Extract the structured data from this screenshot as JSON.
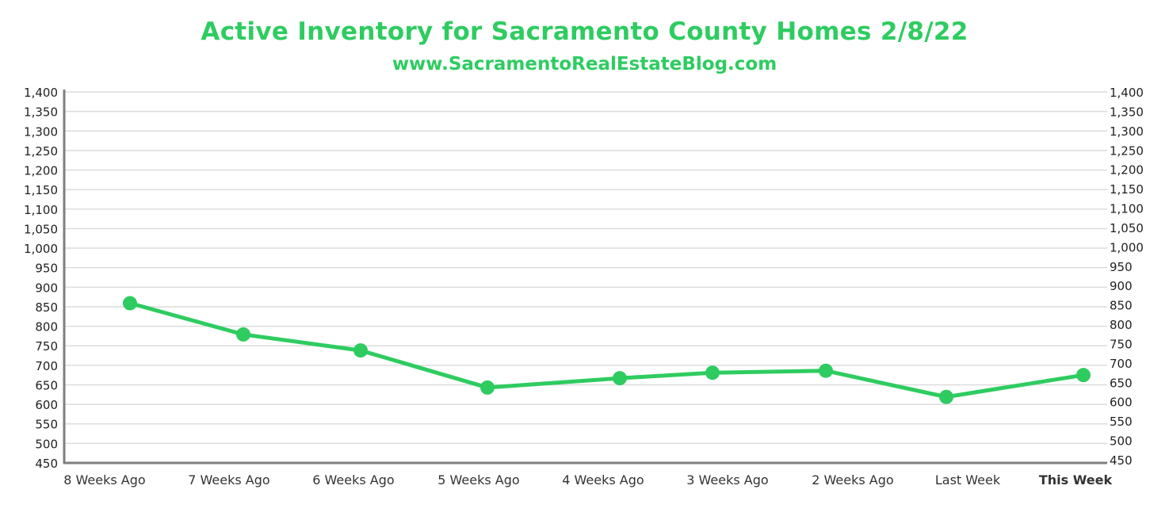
{
  "chart_data": {
    "type": "line",
    "title": "Active Inventory for Sacramento County Homes 2/8/22",
    "subtitle": "www.SacramentoRealEstateBlog.com",
    "categories": [
      "8 Weeks Ago",
      "7 Weeks Ago",
      "6 Weeks Ago",
      "5 Weeks Ago",
      "4 Weeks Ago",
      "3 Weeks Ago",
      "2 Weeks Ago",
      "Last Week",
      "This Week"
    ],
    "highlight_category": "This Week",
    "series": [
      {
        "name": "Active Inventory",
        "values": [
          859,
          779,
          738,
          643,
          667,
          681,
          686,
          619,
          675
        ]
      }
    ],
    "ylim": [
      450,
      1400
    ],
    "yticks_left": [
      "1,400",
      "1,350",
      "1,300",
      "1,250",
      "1,200",
      "1,150",
      "1,100",
      "1,050",
      "1,000",
      "950",
      "900",
      "850",
      "800",
      "750",
      "700",
      "650",
      "600",
      "550",
      "500",
      "450"
    ],
    "yticks_right": [
      "1,400",
      "1,350",
      "1,300",
      "1,250",
      "1,200",
      "1,150",
      "1,100",
      "1,050",
      "1,000",
      "950",
      "900",
      "850",
      "800",
      "750",
      "700",
      "650",
      "600",
      "550",
      "500",
      "450"
    ],
    "xlabel": "",
    "ylabel": "",
    "grid": true,
    "colors": {
      "line": "#2ecc60",
      "title": "#2ecc60",
      "highlight": "#2ecc60",
      "grid": "#dcdcdc",
      "axis": "#7f7f7f"
    }
  }
}
